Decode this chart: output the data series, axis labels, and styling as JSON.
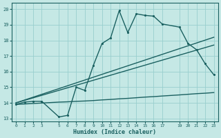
{
  "xlabel": "Humidex (Indice chaleur)",
  "xlim": [
    -0.5,
    23.5
  ],
  "ylim": [
    12.8,
    20.4
  ],
  "xticks": [
    0,
    1,
    2,
    3,
    5,
    6,
    7,
    8,
    9,
    10,
    11,
    12,
    13,
    14,
    15,
    16,
    17,
    19,
    20,
    21,
    22,
    23
  ],
  "yticks": [
    13,
    14,
    15,
    16,
    17,
    18,
    19,
    20
  ],
  "bg_color": "#c5e8e5",
  "grid_color": "#98cece",
  "line_color": "#1a6060",
  "jagged_x": [
    0,
    1,
    2,
    3,
    5,
    6,
    7,
    8,
    9,
    10,
    11,
    12,
    13,
    14,
    15,
    16,
    17,
    19,
    20,
    21,
    22,
    23
  ],
  "jagged_y": [
    13.9,
    14.05,
    14.1,
    14.1,
    13.1,
    13.2,
    15.0,
    14.8,
    16.4,
    17.8,
    18.15,
    19.9,
    18.5,
    19.7,
    19.6,
    19.55,
    19.05,
    18.85,
    17.8,
    17.4,
    16.5,
    15.8
  ],
  "upper_line_x": [
    0,
    23
  ],
  "upper_line_y": [
    14.0,
    18.2
  ],
  "mid_line_x": [
    0,
    23
  ],
  "mid_line_y": [
    14.0,
    17.7
  ],
  "lower_line_x": [
    0,
    1,
    2,
    3,
    5,
    6,
    7,
    8,
    9,
    10,
    11,
    12,
    13,
    14,
    15,
    16,
    17,
    19,
    20,
    21,
    22,
    23
  ],
  "lower_line_y": [
    13.9,
    13.93,
    13.96,
    13.99,
    14.05,
    14.07,
    14.1,
    14.12,
    14.15,
    14.19,
    14.22,
    14.26,
    14.29,
    14.33,
    14.37,
    14.4,
    14.44,
    14.51,
    14.55,
    14.59,
    14.62,
    14.66
  ],
  "linewidth": 1.0,
  "markersize": 2.5
}
